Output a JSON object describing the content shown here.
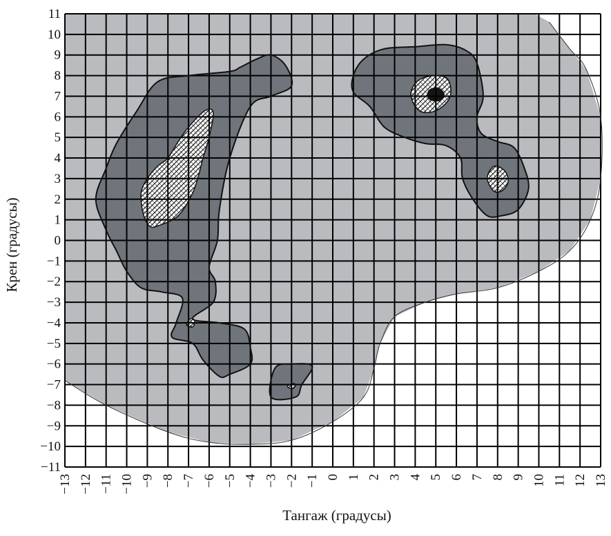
{
  "chart_data": {
    "type": "heatmap",
    "title": "",
    "xlabel": "Тангаж (градусы)",
    "ylabel": "Крен (градусы)",
    "xlim": [
      -13,
      13
    ],
    "ylim": [
      -11,
      11
    ],
    "x_ticks": [
      "−13",
      "−12",
      "−11",
      "−10",
      "−9",
      "−8",
      "−7",
      "−6",
      "−5",
      "−4",
      "−3",
      "−2",
      "−1",
      "0",
      "1",
      "2",
      "3",
      "4",
      "5",
      "6",
      "7",
      "8",
      "9",
      "10",
      "11",
      "12",
      "13"
    ],
    "y_ticks": [
      "11",
      "10",
      "9",
      "8",
      "7",
      "6",
      "5",
      "4",
      "3",
      "2",
      "1",
      "0",
      "−1",
      "−2",
      "−3",
      "−4",
      "−5",
      "−6",
      "−7",
      "−8",
      "−9",
      "−10",
      "−11"
    ],
    "grid": true,
    "legend": "none",
    "colors": {
      "background": "#ffffff",
      "level_1": "#b9bbbf",
      "level_2": "#6f757b",
      "level_3": "#ffffff",
      "level_4": "#151515",
      "grid": "#000000"
    },
    "regions": [
      {
        "level": 1,
        "outline": [
          [
            -13,
            -6.8
          ],
          [
            -11,
            -8
          ],
          [
            -8,
            -9.3
          ],
          [
            -6,
            -9.8
          ],
          [
            -4,
            -9.9
          ],
          [
            -2,
            -9.7
          ],
          [
            0,
            -8.8
          ],
          [
            1.5,
            -7.6
          ],
          [
            2,
            -6.2
          ],
          [
            2.3,
            -5
          ],
          [
            3,
            -3.7
          ],
          [
            4.5,
            -3
          ],
          [
            6,
            -2.6
          ],
          [
            8,
            -2.3
          ],
          [
            10,
            -1.5
          ],
          [
            11.5,
            -0.5
          ],
          [
            12.5,
            1
          ],
          [
            13,
            3
          ],
          [
            13,
            6
          ],
          [
            12.3,
            8.3
          ],
          [
            11.5,
            9.3
          ],
          [
            10.5,
            10.6
          ],
          [
            9.8,
            11
          ],
          [
            -13,
            11
          ]
        ]
      },
      {
        "level": 2,
        "outline": [
          [
            -8.5,
            7.7
          ],
          [
            -7,
            8
          ],
          [
            -5,
            8.2
          ],
          [
            -4.5,
            8.4
          ],
          [
            -3.7,
            8.8
          ],
          [
            -3,
            9
          ],
          [
            -2.3,
            8.5
          ],
          [
            -2,
            7.5
          ],
          [
            -3,
            7
          ],
          [
            -4,
            6.5
          ],
          [
            -5,
            4
          ],
          [
            -5.5,
            1.5
          ],
          [
            -5.6,
            0
          ],
          [
            -6,
            -1.3
          ],
          [
            -5.7,
            -2
          ],
          [
            -5.8,
            -3
          ],
          [
            -6.8,
            -3.8
          ],
          [
            -5.5,
            -4
          ],
          [
            -4.3,
            -4.3
          ],
          [
            -4,
            -5.2
          ],
          [
            -4,
            -6
          ],
          [
            -5,
            -6.5
          ],
          [
            -5.5,
            -6.6
          ],
          [
            -6.3,
            -5.8
          ],
          [
            -6.8,
            -5
          ],
          [
            -7.8,
            -4.7
          ],
          [
            -7.6,
            -4
          ],
          [
            -7.3,
            -2.8
          ],
          [
            -8.3,
            -2.5
          ],
          [
            -9.3,
            -2.3
          ],
          [
            -10,
            -1.5
          ],
          [
            -10.5,
            -0.5
          ],
          [
            -11,
            0.5
          ],
          [
            -11.5,
            2
          ],
          [
            -11,
            3.5
          ],
          [
            -10.5,
            4.7
          ],
          [
            -9.5,
            6.3
          ]
        ]
      },
      {
        "level": 2,
        "outline": [
          [
            -2.8,
            -6.2
          ],
          [
            -2,
            -6
          ],
          [
            -1,
            -6.1
          ],
          [
            -1.5,
            -7
          ],
          [
            -1.8,
            -7.6
          ],
          [
            -3,
            -7.6
          ]
        ]
      },
      {
        "level": 2,
        "outline": [
          [
            1,
            8
          ],
          [
            1.5,
            8.8
          ],
          [
            2.5,
            9.3
          ],
          [
            4,
            9.4
          ],
          [
            5.5,
            9.5
          ],
          [
            6.5,
            9.2
          ],
          [
            7,
            8.6
          ],
          [
            7.3,
            7
          ],
          [
            7,
            6
          ],
          [
            7.2,
            5.2
          ],
          [
            8,
            4.8
          ],
          [
            8.8,
            4.5
          ],
          [
            9.3,
            3.5
          ],
          [
            9.5,
            2.5
          ],
          [
            9,
            1.5
          ],
          [
            8.2,
            1.2
          ],
          [
            7.5,
            1.2
          ],
          [
            6.8,
            2
          ],
          [
            6.3,
            3
          ],
          [
            6.2,
            4
          ],
          [
            5.5,
            4.6
          ],
          [
            4.5,
            4.7
          ],
          [
            3.5,
            5
          ],
          [
            2.5,
            5.5
          ],
          [
            1.8,
            6.5
          ],
          [
            1,
            7.2
          ]
        ]
      },
      {
        "level": 3,
        "outline": [
          [
            -8.5,
            0.7
          ],
          [
            -7.5,
            1.2
          ],
          [
            -6.8,
            2.3
          ],
          [
            -6.5,
            3.2
          ],
          [
            -6.3,
            4
          ],
          [
            -6,
            5
          ],
          [
            -5.8,
            6.2
          ],
          [
            -6.2,
            6.3
          ],
          [
            -7,
            5.5
          ],
          [
            -7.5,
            4.8
          ],
          [
            -8,
            4
          ],
          [
            -8.5,
            3.6
          ],
          [
            -9,
            3
          ],
          [
            -9.3,
            2.3
          ],
          [
            -9.2,
            1.3
          ],
          [
            -8.9,
            0.7
          ]
        ]
      },
      {
        "level": 3,
        "outline": [
          [
            3.8,
            7.2
          ],
          [
            4.2,
            7.8
          ],
          [
            5,
            8
          ],
          [
            5.6,
            7.8
          ],
          [
            5.7,
            7
          ],
          [
            5.2,
            6.4
          ],
          [
            4.5,
            6.2
          ],
          [
            4,
            6.5
          ]
        ]
      },
      {
        "level": 3,
        "outline": [
          [
            7.5,
            3
          ],
          [
            7.7,
            3.5
          ],
          [
            8,
            3.6
          ],
          [
            8.4,
            3.3
          ],
          [
            8.5,
            2.8
          ],
          [
            8.2,
            2.4
          ],
          [
            7.8,
            2.4
          ]
        ]
      },
      {
        "level": 3,
        "outline": [
          [
            -7.1,
            -4.1
          ],
          [
            -6.9,
            -3.8
          ],
          [
            -6.7,
            -3.9
          ],
          [
            -6.8,
            -4.2
          ]
        ]
      },
      {
        "level": 3,
        "outline": [
          [
            -2.2,
            -7.1
          ],
          [
            -2,
            -6.95
          ],
          [
            -1.8,
            -7
          ],
          [
            -1.95,
            -7.2
          ]
        ]
      },
      {
        "level": 4,
        "outline": [
          [
            4.7,
            7.3
          ],
          [
            5.1,
            7.4
          ],
          [
            5.4,
            7.1
          ],
          [
            5.2,
            6.8
          ],
          [
            4.8,
            6.8
          ],
          [
            4.6,
            7
          ]
        ]
      }
    ]
  }
}
